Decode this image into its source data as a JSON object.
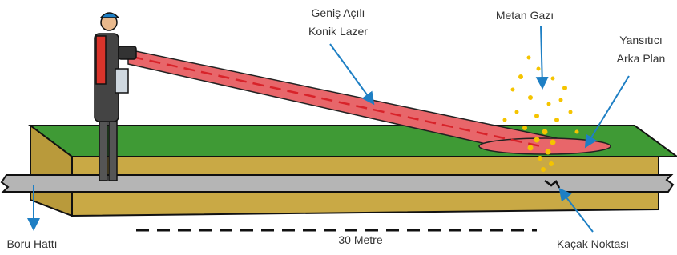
{
  "labels": {
    "laser": [
      "Geniş Açılı",
      "Konik Lazer"
    ],
    "gas": "Metan Gazı",
    "background": [
      "Yansıtıcı",
      "Arka Plan"
    ],
    "pipeline": "Boru Hattı",
    "distance": "30 Metre",
    "leak": "Kaçak Noktası"
  }
}
